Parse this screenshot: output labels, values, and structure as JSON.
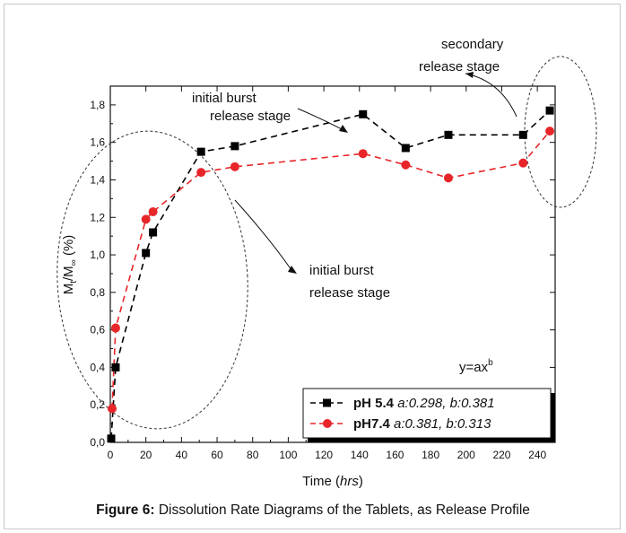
{
  "chart_data": {
    "type": "line",
    "xlabel_prefix": "Time (",
    "xlabel_unit": "hrs",
    "xlabel_suffix": ")",
    "ylabel_parts": [
      "M",
      "t",
      "/M",
      "∞",
      " (%)"
    ],
    "xlim": [
      0,
      250
    ],
    "ylim": [
      0,
      1.9
    ],
    "x_ticks": [
      0,
      20,
      40,
      60,
      80,
      100,
      120,
      140,
      160,
      180,
      200,
      220,
      240
    ],
    "y_ticks": [
      "0,0",
      "0,2",
      "0,4",
      "0,6",
      "0,8",
      "1,0",
      "1,2",
      "1,4",
      "1,6",
      "1,8"
    ],
    "y_tick_values": [
      0,
      0.2,
      0.4,
      0.6,
      0.8,
      1.0,
      1.2,
      1.4,
      1.6,
      1.8
    ],
    "series": [
      {
        "name_bold": "pH 5.4",
        "name_italic": "a:0.298, b:0.381",
        "color": "#000000",
        "marker": "square",
        "x": [
          0.5,
          3,
          20,
          24,
          51,
          70,
          142,
          166,
          190,
          232,
          247
        ],
        "y": [
          0.02,
          0.4,
          1.01,
          1.12,
          1.55,
          1.58,
          1.75,
          1.57,
          1.64,
          1.64,
          1.77
        ]
      },
      {
        "name_bold": "pH7.4",
        "name_italic": "a:0.381, b:0.313",
        "color": "#e8262a",
        "marker": "circle",
        "x": [
          1,
          3,
          20,
          24,
          51,
          70,
          142,
          166,
          190,
          232,
          247
        ],
        "y": [
          0.18,
          0.61,
          1.19,
          1.23,
          1.44,
          1.47,
          1.54,
          1.48,
          1.41,
          1.49,
          1.66
        ]
      }
    ],
    "annotations": {
      "burst_top_line1": "initial burst",
      "burst_top_line2": "release stage",
      "burst_mid_line1": "initial burst",
      "burst_mid_line2": "release stage",
      "secondary_line1": "secondary",
      "secondary_line2": "release stage",
      "equation_base": "y=ax",
      "equation_exp": "b"
    },
    "grid": false,
    "legend_position": "bottom-right"
  },
  "caption": {
    "label": "Figure 6:",
    "text": " Dissolution Rate Diagrams of the Tablets, as Release Profile"
  }
}
